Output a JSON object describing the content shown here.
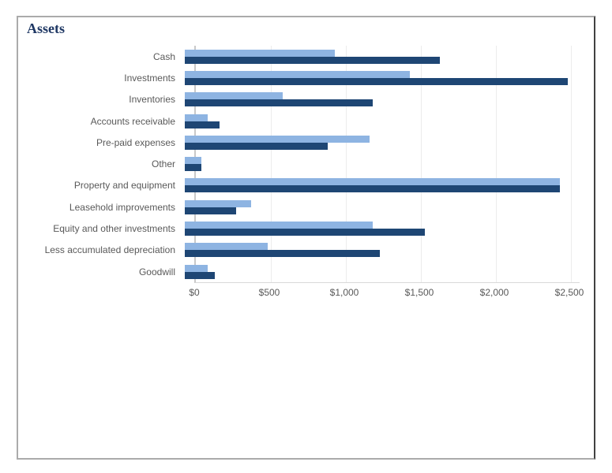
{
  "window": {
    "title": "Assets"
  },
  "chart_data": {
    "type": "bar",
    "orientation": "horizontal",
    "title": "Assets",
    "legend": "none",
    "grid": true,
    "categories": [
      "Cash",
      "Investments",
      "Inventories",
      "Accounts receivable",
      "Pre-paid expenses",
      "Other",
      "Property and equipment",
      "Leasehold improvements",
      "Equity and other investments",
      "Less accumulated depreciation",
      "Goodwill"
    ],
    "series": [
      {
        "name": "light-blue-series",
        "color": "#8EB4E2",
        "values": [
          1000,
          1500,
          650,
          150,
          1230,
          110,
          2500,
          440,
          1250,
          550,
          150
        ]
      },
      {
        "name": "dark-blue-series",
        "color": "#1E4674",
        "values": [
          1700,
          2550,
          1250,
          230,
          950,
          110,
          2500,
          340,
          1600,
          1300,
          200
        ]
      }
    ],
    "x_axis": {
      "min": 0,
      "max": 2500,
      "tick_step": 500,
      "ticks": [
        {
          "value": 0,
          "label": "$0"
        },
        {
          "value": 500,
          "label": "$500"
        },
        {
          "value": 1000,
          "label": "$1,000"
        },
        {
          "value": 1500,
          "label": "$1,500"
        },
        {
          "value": 2000,
          "label": "$2,000"
        },
        {
          "value": 2500,
          "label": "$2,500"
        }
      ]
    },
    "colors": {
      "title_text": "#1F3864",
      "label_text": "#595959",
      "gridline": "#ECECEC",
      "axis_line": "#C9C9C9",
      "frame_border": "#ABABAB",
      "frame_border_right": "#414141"
    }
  }
}
